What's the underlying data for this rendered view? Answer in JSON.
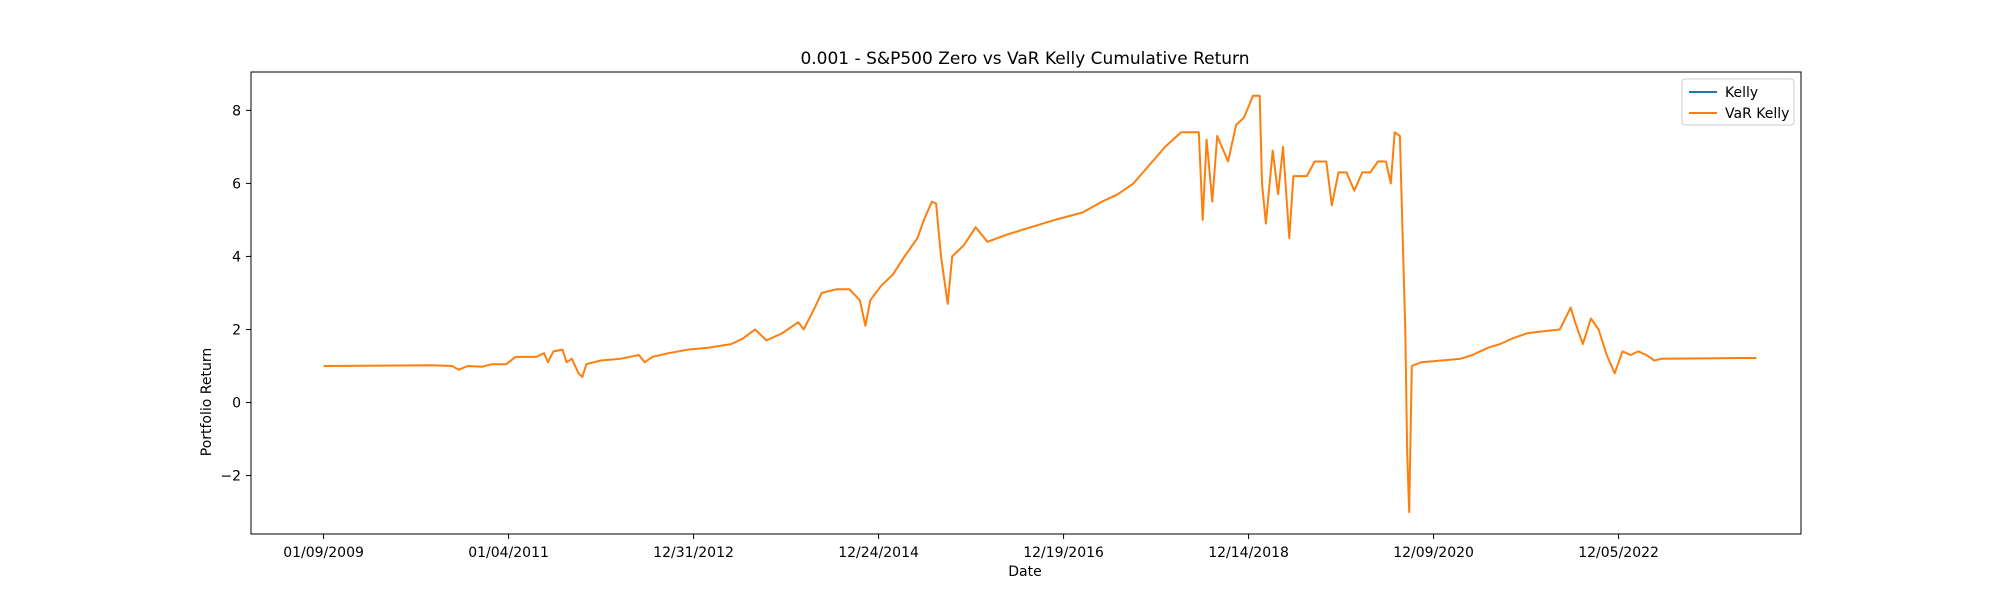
{
  "chart_data": {
    "type": "line",
    "title": "0.001 - S&P500 Zero vs VaR Kelly Cumulative Return",
    "xlabel": "Date",
    "ylabel": "Portfolio Return",
    "x_tick_labels": [
      "01/09/2009",
      "01/04/2011",
      "12/31/2012",
      "12/24/2014",
      "12/19/2016",
      "12/14/2018",
      "12/09/2020",
      "12/05/2022"
    ],
    "y_ticks": [
      -2,
      0,
      2,
      4,
      6,
      8
    ],
    "y_tick_labels": [
      "−2",
      "0",
      "2",
      "4",
      "6",
      "8"
    ],
    "xlim": [
      "2008-04-04",
      "2024-08-20"
    ],
    "ylim": [
      -3.6,
      9.05
    ],
    "grid": false,
    "legend_position": "top-right",
    "series": [
      {
        "name": "Kelly",
        "color": "#1f77b4",
        "values": []
      },
      {
        "name": "VaR Kelly",
        "color": "#ff7f0e",
        "points": [
          [
            "2009-01-09",
            1.0
          ],
          [
            "2010-03-01",
            1.02
          ],
          [
            "2010-05-20",
            1.0
          ],
          [
            "2010-06-15",
            0.9
          ],
          [
            "2010-07-20",
            1.0
          ],
          [
            "2010-09-15",
            0.98
          ],
          [
            "2010-10-20",
            1.05
          ],
          [
            "2010-12-15",
            1.05
          ],
          [
            "2011-01-20",
            1.25
          ],
          [
            "2011-04-10",
            1.25
          ],
          [
            "2011-05-10",
            1.35
          ],
          [
            "2011-05-25",
            1.1
          ],
          [
            "2011-06-15",
            1.4
          ],
          [
            "2011-07-20",
            1.45
          ],
          [
            "2011-08-05",
            1.1
          ],
          [
            "2011-08-25",
            1.2
          ],
          [
            "2011-09-20",
            0.8
          ],
          [
            "2011-10-05",
            0.7
          ],
          [
            "2011-10-20",
            1.05
          ],
          [
            "2011-12-15",
            1.15
          ],
          [
            "2012-03-01",
            1.2
          ],
          [
            "2012-05-10",
            1.3
          ],
          [
            "2012-06-01",
            1.1
          ],
          [
            "2012-07-01",
            1.25
          ],
          [
            "2012-09-01",
            1.35
          ],
          [
            "2012-11-15",
            1.45
          ],
          [
            "2013-02-01",
            1.5
          ],
          [
            "2013-05-01",
            1.6
          ],
          [
            "2013-06-15",
            1.75
          ],
          [
            "2013-08-01",
            2.0
          ],
          [
            "2013-09-15",
            1.7
          ],
          [
            "2013-11-15",
            1.9
          ],
          [
            "2014-01-15",
            2.2
          ],
          [
            "2014-02-05",
            2.0
          ],
          [
            "2014-03-20",
            2.6
          ],
          [
            "2014-04-15",
            3.0
          ],
          [
            "2014-06-10",
            3.1
          ],
          [
            "2014-08-01",
            3.1
          ],
          [
            "2014-09-10",
            2.8
          ],
          [
            "2014-10-01",
            2.1
          ],
          [
            "2014-10-20",
            2.8
          ],
          [
            "2014-12-01",
            3.2
          ],
          [
            "2015-01-15",
            3.5
          ],
          [
            "2015-03-01",
            4.0
          ],
          [
            "2015-04-20",
            4.5
          ],
          [
            "2015-05-15",
            5.0
          ],
          [
            "2015-06-15",
            5.5
          ],
          [
            "2015-07-01",
            5.45
          ],
          [
            "2015-07-20",
            4.0
          ],
          [
            "2015-08-15",
            2.7
          ],
          [
            "2015-09-01",
            4.0
          ],
          [
            "2015-10-15",
            4.3
          ],
          [
            "2015-12-01",
            4.8
          ],
          [
            "2016-01-15",
            4.4
          ],
          [
            "2016-04-01",
            4.6
          ],
          [
            "2016-07-01",
            4.8
          ],
          [
            "2016-10-01",
            5.0
          ],
          [
            "2017-01-15",
            5.2
          ],
          [
            "2017-04-01",
            5.5
          ],
          [
            "2017-06-01",
            5.7
          ],
          [
            "2017-08-01",
            6.0
          ],
          [
            "2017-10-01",
            6.5
          ],
          [
            "2017-12-01",
            7.0
          ],
          [
            "2018-02-01",
            7.4
          ],
          [
            "2018-04-10",
            7.4
          ],
          [
            "2018-04-25",
            5.0
          ],
          [
            "2018-05-10",
            7.2
          ],
          [
            "2018-06-01",
            5.5
          ],
          [
            "2018-06-20",
            7.3
          ],
          [
            "2018-08-01",
            6.6
          ],
          [
            "2018-09-01",
            7.6
          ],
          [
            "2018-10-01",
            7.8
          ],
          [
            "2018-11-05",
            8.4
          ],
          [
            "2018-12-01",
            8.4
          ],
          [
            "2018-12-10",
            6.0
          ],
          [
            "2018-12-25",
            4.9
          ],
          [
            "2019-01-20",
            6.9
          ],
          [
            "2019-02-10",
            5.7
          ],
          [
            "2019-03-01",
            7.0
          ],
          [
            "2019-03-25",
            4.5
          ],
          [
            "2019-04-10",
            6.2
          ],
          [
            "2019-06-01",
            6.2
          ],
          [
            "2019-07-01",
            6.6
          ],
          [
            "2019-08-15",
            6.6
          ],
          [
            "2019-09-05",
            5.4
          ],
          [
            "2019-10-01",
            6.3
          ],
          [
            "2019-11-01",
            6.3
          ],
          [
            "2019-12-01",
            5.8
          ],
          [
            "2020-01-01",
            6.3
          ],
          [
            "2020-02-01",
            6.3
          ],
          [
            "2020-03-01",
            6.6
          ],
          [
            "2020-04-01",
            6.6
          ],
          [
            "2020-04-20",
            6.0
          ],
          [
            "2020-05-05",
            7.4
          ],
          [
            "2020-05-25",
            7.3
          ],
          [
            "2020-06-05",
            4.5
          ],
          [
            "2020-06-15",
            2.0
          ],
          [
            "2020-06-22",
            -1.4
          ],
          [
            "2020-06-30",
            -3.0
          ],
          [
            "2020-07-10",
            1.0
          ],
          [
            "2020-08-15",
            1.1
          ],
          [
            "2020-11-01",
            1.15
          ],
          [
            "2021-01-15",
            1.2
          ],
          [
            "2021-03-01",
            1.3
          ],
          [
            "2021-05-01",
            1.5
          ],
          [
            "2021-06-15",
            1.6
          ],
          [
            "2021-08-01",
            1.75
          ],
          [
            "2021-10-01",
            1.9
          ],
          [
            "2021-12-01",
            1.95
          ],
          [
            "2022-02-01",
            2.0
          ],
          [
            "2022-03-15",
            2.6
          ],
          [
            "2022-04-01",
            2.2
          ],
          [
            "2022-05-01",
            1.6
          ],
          [
            "2022-06-01",
            2.3
          ],
          [
            "2022-07-01",
            2.0
          ],
          [
            "2022-08-01",
            1.3
          ],
          [
            "2022-09-01",
            0.8
          ],
          [
            "2022-10-01",
            1.4
          ],
          [
            "2022-11-01",
            1.3
          ],
          [
            "2022-12-01",
            1.4
          ],
          [
            "2023-01-01",
            1.3
          ],
          [
            "2023-02-01",
            1.15
          ],
          [
            "2023-03-01",
            1.2
          ],
          [
            "2024-01-01",
            1.22
          ],
          [
            "2024-03-01",
            1.22
          ]
        ]
      }
    ]
  }
}
